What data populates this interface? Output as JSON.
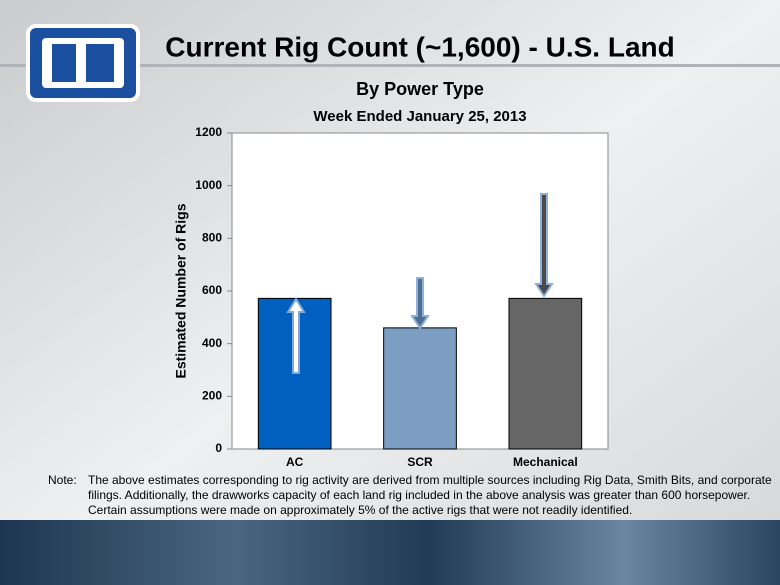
{
  "chart_data": {
    "type": "bar",
    "title": "Current Rig Count (~1,600) - U.S. Land",
    "subtitle": "By Power Type",
    "period": "Week Ended January 25, 2013",
    "y_label": "Estimated Number of Rigs",
    "categories": [
      "AC",
      "SCR",
      "Mechanical"
    ],
    "values": [
      572,
      460,
      572
    ],
    "colors": [
      "#0060c0",
      "#7c9ec2",
      "#666666"
    ],
    "ylim": [
      0,
      1200
    ],
    "yticks": [
      0,
      200,
      400,
      600,
      800,
      1000,
      1200
    ],
    "grid": false,
    "note": {
      "label": "Note:",
      "lines": [
        "The above estimates corresponding to rig activity are derived from multiple sources including Rig Data, Smith Bits, and corporate",
        "filings.  Additionally, the drawworks capacity of each land rig included in the above analysis was greater than 600 horsepower.",
        "Certain assumptions were made on approximately 5% of the active rigs that were not readily identified."
      ]
    }
  }
}
